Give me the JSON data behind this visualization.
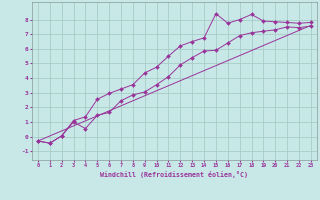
{
  "xlabel": "Windchill (Refroidissement éolien,°C)",
  "bg_color": "#c8e8e8",
  "line_color": "#993399",
  "grid_color": "#a0c8c0",
  "xlim": [
    -0.5,
    23.5
  ],
  "ylim": [
    -1.6,
    9.2
  ],
  "yticks": [
    -1,
    0,
    1,
    2,
    3,
    4,
    5,
    6,
    7,
    8
  ],
  "xticks": [
    0,
    1,
    2,
    3,
    4,
    5,
    6,
    7,
    8,
    9,
    10,
    11,
    12,
    13,
    14,
    15,
    16,
    17,
    18,
    19,
    20,
    21,
    22,
    23
  ],
  "line1_x": [
    0,
    1,
    2,
    3,
    4,
    5,
    6,
    7,
    8,
    9,
    10,
    11,
    12,
    13,
    14,
    15,
    16,
    17,
    18,
    19,
    20,
    21,
    22,
    23
  ],
  "line1_y": [
    -0.3,
    -0.45,
    0.05,
    1.1,
    1.35,
    2.55,
    2.95,
    3.25,
    3.55,
    4.35,
    4.75,
    5.5,
    6.2,
    6.5,
    6.75,
    8.4,
    7.75,
    8.0,
    8.35,
    7.9,
    7.85,
    7.8,
    7.75,
    7.8
  ],
  "line2_x": [
    0,
    1,
    2,
    3,
    4,
    5,
    6,
    7,
    8,
    9,
    10,
    11,
    12,
    13,
    14,
    15,
    16,
    17,
    18,
    19,
    20,
    21,
    22,
    23
  ],
  "line2_y": [
    -0.3,
    -0.45,
    0.05,
    1.0,
    0.55,
    1.45,
    1.65,
    2.45,
    2.85,
    3.05,
    3.55,
    4.1,
    4.9,
    5.4,
    5.85,
    5.9,
    6.4,
    6.9,
    7.1,
    7.2,
    7.3,
    7.5,
    7.45,
    7.55
  ],
  "line3_x": [
    0,
    23
  ],
  "line3_y": [
    -0.3,
    7.6
  ]
}
